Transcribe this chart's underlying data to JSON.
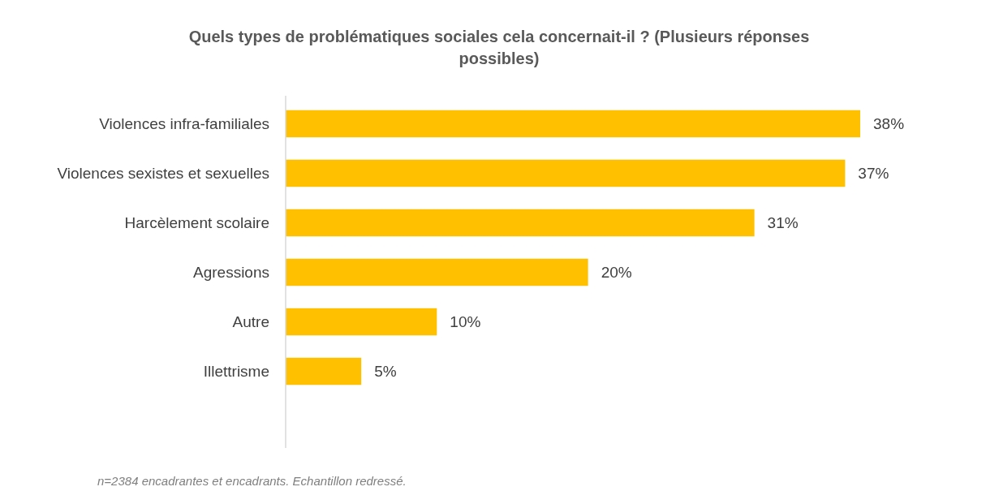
{
  "chart_data": {
    "type": "bar",
    "orientation": "horizontal",
    "title": "Quels types de problématiques sociales cela concernait-il ? (Plusieurs réponses possibles)",
    "categories": [
      "Violences infra-familiales",
      "Violences sexistes et sexuelles",
      "Harcèlement scolaire",
      "Agressions",
      "Autre",
      "Illettrisme"
    ],
    "values": [
      38,
      37,
      31,
      20,
      10,
      5
    ],
    "value_labels": [
      "38%",
      "37%",
      "31%",
      "20%",
      "10%",
      "5%"
    ],
    "color": "#ffc000",
    "annotations": [
      "n=2384 encadrantes et encadrants. Echantillon redressé."
    ]
  }
}
